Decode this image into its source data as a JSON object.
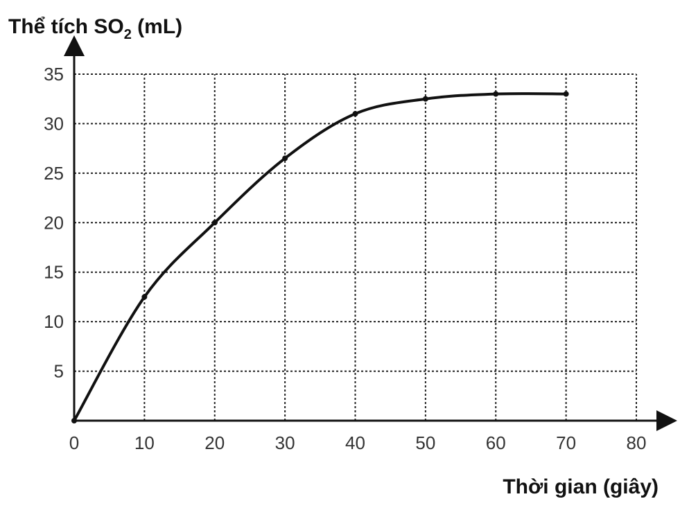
{
  "chart_data": {
    "type": "line",
    "title": "",
    "ylabel_main": "Thể tích SO",
    "ylabel_sub": "2",
    "ylabel_unit": " (mL)",
    "xlabel": "Thời gian (giây)",
    "xlim": [
      0,
      80
    ],
    "ylim": [
      0,
      35
    ],
    "x_ticks": [
      0,
      10,
      20,
      30,
      40,
      50,
      60,
      70,
      80
    ],
    "y_ticks": [
      5,
      10,
      15,
      20,
      25,
      30,
      35
    ],
    "grid": true,
    "series": [
      {
        "x": [
          0,
          10,
          20,
          30,
          40,
          50,
          60,
          70
        ],
        "y": [
          0,
          12.5,
          20,
          26.5,
          31,
          32.5,
          33,
          33
        ]
      }
    ],
    "color": "#111111"
  }
}
